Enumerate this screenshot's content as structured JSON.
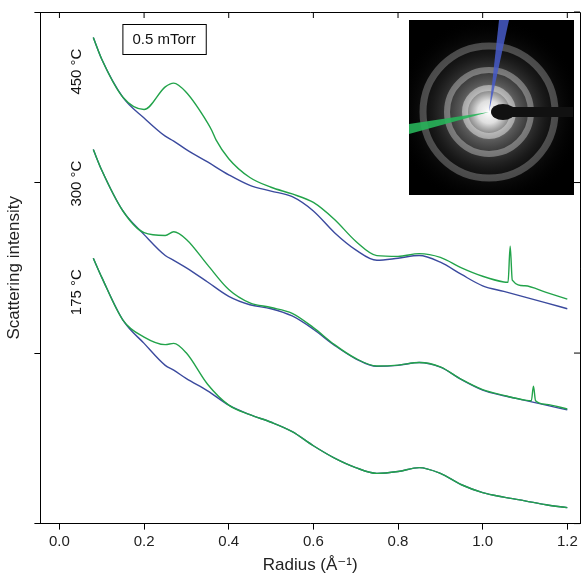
{
  "chart_data": {
    "type": "line",
    "x_label": "Radius (Å⁻¹)",
    "y_label": "Scattering intensity",
    "annotation": "0.5 mTorr",
    "log": "y",
    "tick_labels": "x",
    "grid": false,
    "xlim": [
      -0.045,
      1.23
    ],
    "xticks": [
      {
        "value": 0,
        "label": "0.0"
      },
      0.2,
      0.4,
      0.6,
      0.8,
      {
        "value": 1,
        "label": "1.0"
      },
      1.2
    ],
    "ylim": [
      1,
      1000
    ],
    "yticks": [
      1,
      10,
      100,
      1000
    ],
    "series": [
      {
        "name": "450 °C",
        "color": "#22a34a",
        "x": [
          0.08,
          0.1,
          0.15,
          0.2,
          0.25,
          0.27,
          0.3,
          0.35,
          0.36,
          0.37,
          0.4,
          0.45,
          0.5,
          0.55,
          0.6,
          0.65,
          0.7,
          0.75,
          0.8,
          0.85,
          0.9,
          0.95,
          1.0,
          1.05,
          1.06,
          1.065,
          1.07,
          1.1,
          1.15,
          1.2
        ],
        "values": [
          708,
          528,
          316,
          268,
          364,
          383,
          337,
          224,
          202,
          178,
          138,
          107,
          93.8,
          85.7,
          76.4,
          60.7,
          45.3,
          37.3,
          36.9,
          38.3,
          36.4,
          31.6,
          28.2,
          26.1,
          26.0,
          42.4,
          26.8,
          24.8,
          22.7,
          20.7
        ]
      },
      {
        "name": "450 °C",
        "color": "#3b4a9e",
        "x": [
          0.08,
          0.1,
          0.15,
          0.2,
          0.25,
          0.27,
          0.3,
          0.35,
          0.4,
          0.45,
          0.5,
          0.55,
          0.6,
          0.65,
          0.7,
          0.75,
          0.8,
          0.85,
          0.9,
          0.95,
          1.0,
          1.05,
          1.1,
          1.15,
          1.2
        ],
        "values": [
          708,
          528,
          316,
          239,
          187,
          175,
          156,
          132,
          111,
          96.2,
          89.1,
          82.6,
          68.1,
          50.8,
          40.3,
          35.0,
          36.0,
          37.3,
          34.1,
          28.9,
          24.8,
          23.0,
          21.3,
          19.7,
          18.2
        ]
      },
      {
        "name": "300 °C",
        "color": "#22a34a",
        "x": [
          0.08,
          0.1,
          0.15,
          0.2,
          0.25,
          0.27,
          0.3,
          0.35,
          0.4,
          0.45,
          0.5,
          0.55,
          0.6,
          0.65,
          0.7,
          0.75,
          0.8,
          0.85,
          0.9,
          0.95,
          1.0,
          1.05,
          1.1,
          1.115,
          1.12,
          1.125,
          1.15,
          1.2
        ],
        "values": [
          156,
          118,
          68.1,
          50.8,
          48.9,
          51.4,
          46.4,
          32.9,
          23.6,
          19.7,
          18.5,
          17.1,
          14.1,
          11.2,
          9.3,
          8.4,
          8.5,
          8.8,
          8.3,
          7.0,
          6.1,
          5.65,
          5.3,
          5.25,
          6.39,
          5.25,
          5.0,
          4.7
        ]
      },
      {
        "name": "300 °C",
        "color": "#3b4a9e",
        "x": [
          0.08,
          0.1,
          0.15,
          0.2,
          0.25,
          0.27,
          0.3,
          0.35,
          0.4,
          0.45,
          0.5,
          0.55,
          0.6,
          0.65,
          0.7,
          0.75,
          0.8,
          0.85,
          0.9,
          0.95,
          1.0,
          1.05,
          1.1,
          1.15,
          1.2
        ],
        "values": [
          156,
          118,
          68.1,
          49.5,
          37.3,
          35.0,
          31.6,
          26.1,
          21.5,
          19.2,
          18.2,
          16.5,
          13.8,
          11.1,
          9.26,
          8.36,
          8.47,
          8.8,
          8.26,
          6.99,
          6.07,
          5.62,
          5.28,
          4.95,
          4.64
        ]
      },
      {
        "name": "175 °C",
        "color": "#22a34a",
        "x": [
          0.08,
          0.1,
          0.15,
          0.2,
          0.25,
          0.27,
          0.3,
          0.35,
          0.4,
          0.45,
          0.5,
          0.55,
          0.6,
          0.65,
          0.7,
          0.75,
          0.8,
          0.85,
          0.9,
          0.95,
          1.0,
          1.05,
          1.1,
          1.15,
          1.2
        ],
        "values": [
          36.0,
          27.8,
          15.6,
          12.4,
          11.2,
          11.4,
          10.0,
          6.56,
          4.95,
          4.35,
          3.93,
          3.46,
          2.86,
          2.42,
          2.13,
          1.97,
          2.02,
          2.13,
          1.97,
          1.69,
          1.52,
          1.43,
          1.36,
          1.29,
          1.24
        ]
      },
      {
        "name": "175 °C",
        "color": "#3b4a9e",
        "x": [
          0.08,
          0.1,
          0.15,
          0.2,
          0.25,
          0.27,
          0.3,
          0.35,
          0.4,
          0.45,
          0.5,
          0.55,
          0.6,
          0.65,
          0.7,
          0.75,
          0.8,
          0.85,
          0.9,
          0.95,
          1.0,
          1.05,
          1.1,
          1.15,
          1.2
        ],
        "values": [
          36.0,
          27.8,
          15.6,
          11.4,
          8.47,
          7.94,
          7.08,
          6.0,
          4.95,
          4.35,
          3.93,
          3.46,
          2.86,
          2.42,
          2.13,
          1.97,
          2.02,
          2.13,
          1.97,
          1.69,
          1.52,
          1.43,
          1.36,
          1.29,
          1.24
        ]
      }
    ]
  }
}
